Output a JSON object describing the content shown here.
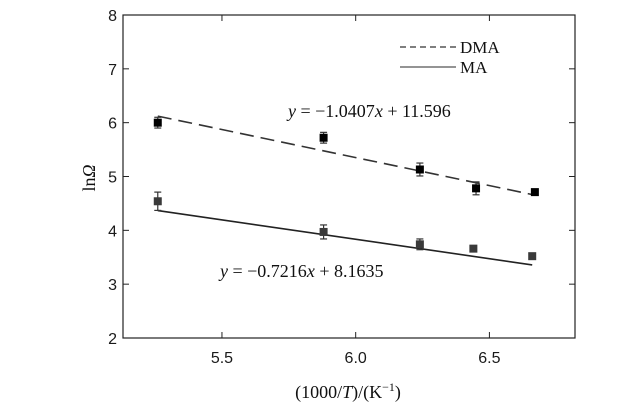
{
  "chart_data": {
    "type": "scatter",
    "xlabel_pre": "(1000/",
    "xlabel_var": "T",
    "xlabel_post": ")/(K",
    "xlabel_sup": "−1",
    "xlabel_end": ")",
    "ylabel_pre": "ln",
    "ylabel_var": "Ω",
    "xlim": [
      5.13,
      6.82
    ],
    "ylim": [
      2,
      8
    ],
    "xticks": [
      5.5,
      6.0,
      6.5
    ],
    "xtick_labels": [
      "5.5",
      "6.0",
      "6.5"
    ],
    "yticks": [
      2,
      3,
      4,
      5,
      6,
      7,
      8
    ],
    "ytick_labels": [
      "2",
      "3",
      "4",
      "5",
      "6",
      "7",
      "8"
    ],
    "grid": false,
    "legend_position": "top-right",
    "series": [
      {
        "name": "DMA",
        "line_style": "dashed",
        "marker_color": "#000000",
        "line_color": "#333333",
        "fit": {
          "slope": -1.0407,
          "intercept": 11.596,
          "x_range": [
            5.26,
            6.67
          ]
        },
        "equation_parts": {
          "y": "y",
          "mid": " = −1.0407",
          "x": "x",
          "end": " + 11.596"
        },
        "points": [
          {
            "x": 5.26,
            "y": 6.0,
            "err": 0.1
          },
          {
            "x": 5.88,
            "y": 5.72,
            "err": 0.1
          },
          {
            "x": 6.24,
            "y": 5.13,
            "err": 0.12
          },
          {
            "x": 6.45,
            "y": 4.78,
            "err": 0.12
          },
          {
            "x": 6.67,
            "y": 4.71,
            "err": 0.04
          }
        ]
      },
      {
        "name": "MA",
        "line_style": "solid",
        "marker_color": "#3a3a3a",
        "line_color": "#222222",
        "fit": {
          "slope": -0.7216,
          "intercept": 8.1635,
          "x_range": [
            5.26,
            6.66
          ]
        },
        "equation_parts": {
          "y": "y",
          "mid": " = −0.7216",
          "x": "x",
          "end": " + 8.1635"
        },
        "points": [
          {
            "x": 5.26,
            "y": 4.54,
            "err": 0.17
          },
          {
            "x": 5.88,
            "y": 3.97,
            "err": 0.13
          },
          {
            "x": 6.24,
            "y": 3.74,
            "err": 0.1
          },
          {
            "x": 6.44,
            "y": 3.66,
            "err": 0.05
          },
          {
            "x": 6.66,
            "y": 3.52,
            "err": 0.03
          }
        ]
      }
    ]
  }
}
